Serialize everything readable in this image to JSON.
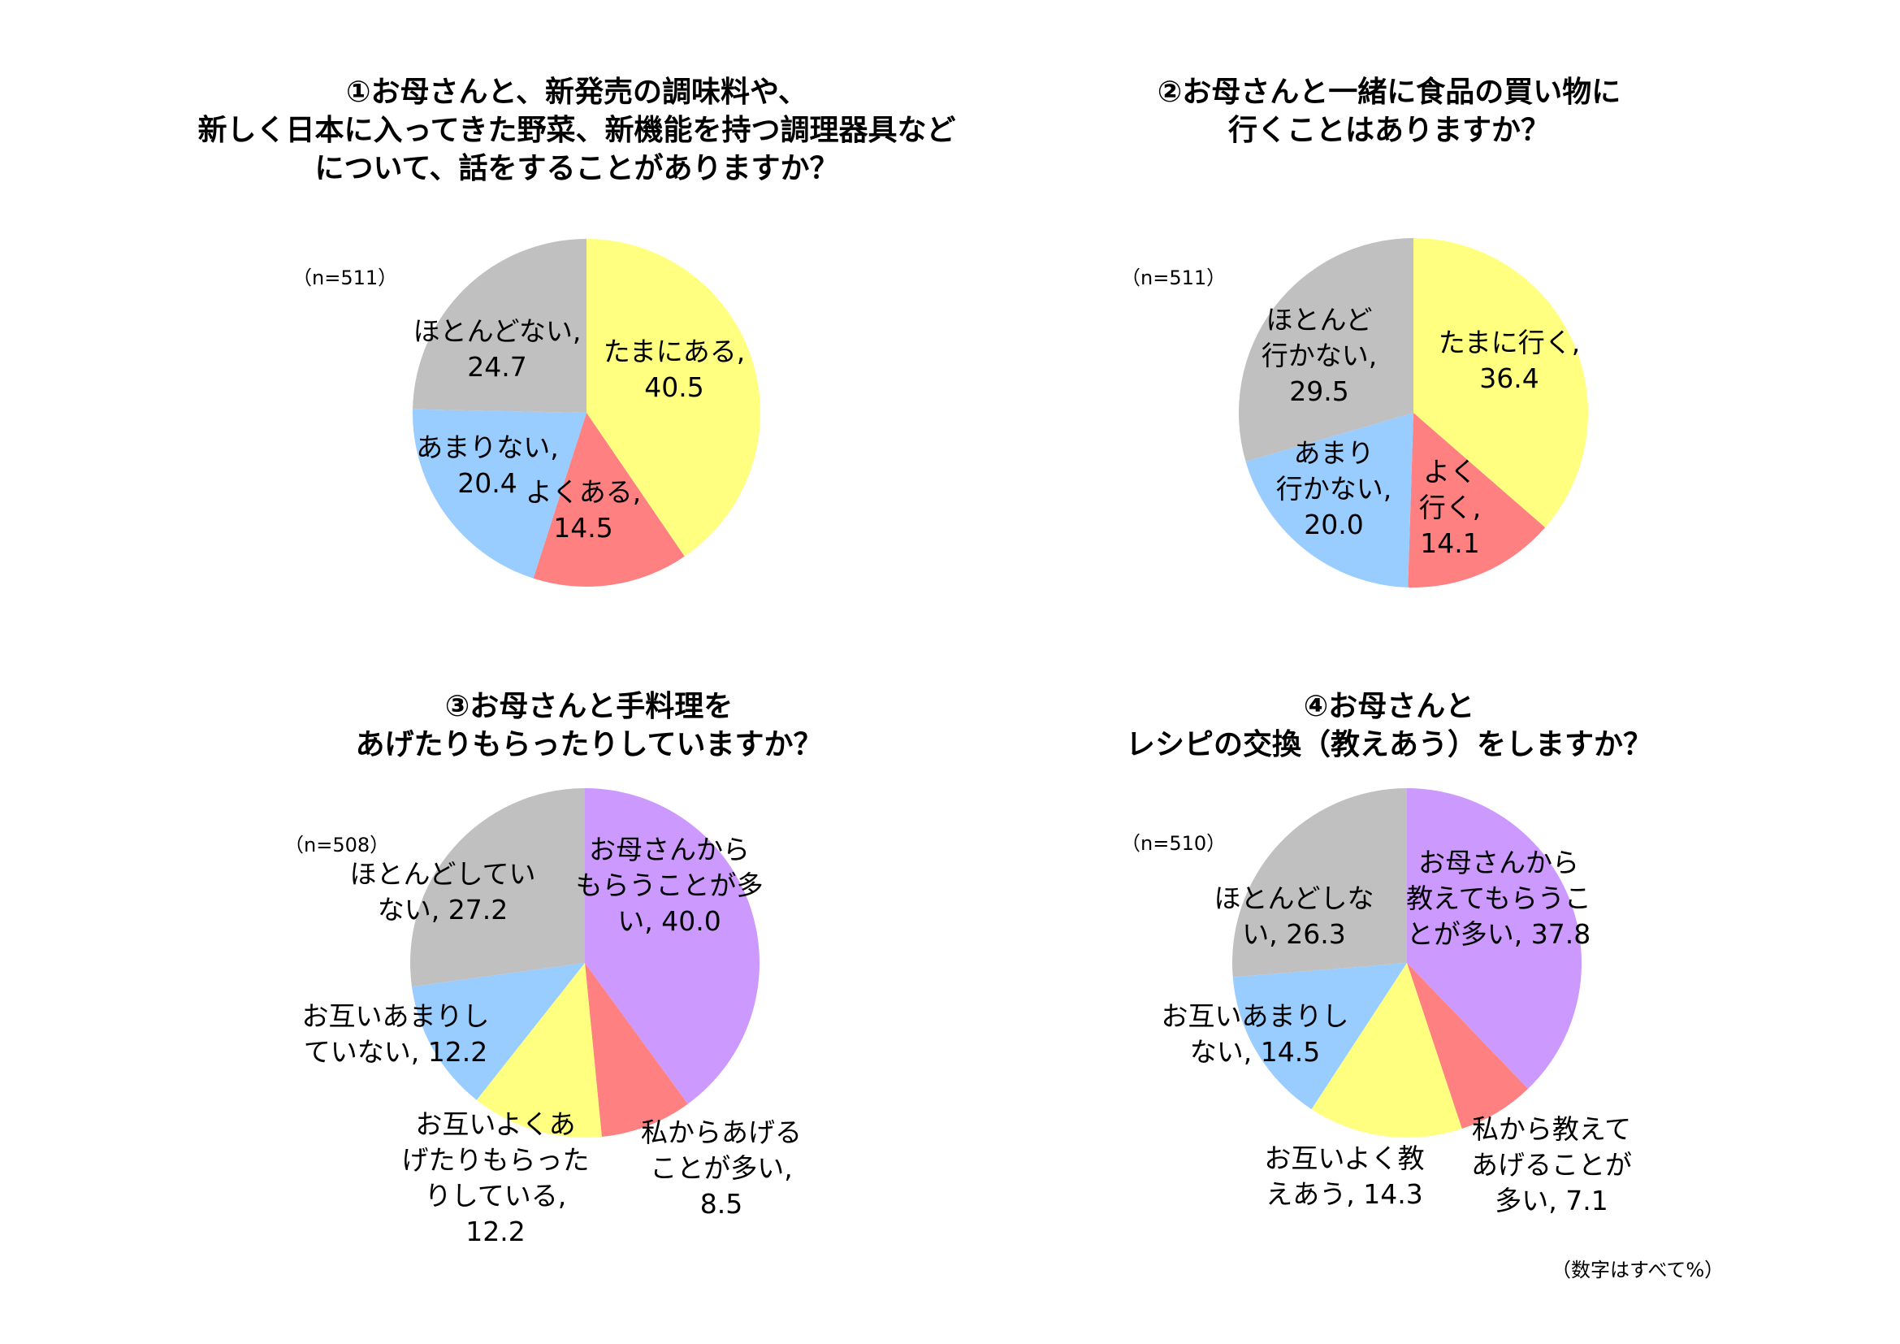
{
  "colors": {
    "yellow": "#ffff80",
    "red": "#ff8080",
    "blue": "#99ccff",
    "gray": "#c0c0c0",
    "purple": "#cc99ff"
  },
  "footnote": "（数字はすべて%）",
  "chart_data": [
    {
      "type": "pie",
      "title_lines": [
        "①お母さんと、新発売の調味料や、",
        "新しく日本に入ってきた野菜、新機能を持つ調理器具など",
        "について、話をすることがありますか？"
      ],
      "n_label": "（n=511）",
      "slices": [
        {
          "label_lines": [
            "たまにある,",
            "40.5"
          ],
          "value": 40.5,
          "color": "#ffff80"
        },
        {
          "label_lines": [
            "よくある,",
            "14.5"
          ],
          "value": 14.5,
          "color": "#ff8080"
        },
        {
          "label_lines": [
            "あまりない,",
            "20.4"
          ],
          "value": 20.4,
          "color": "#99ccff"
        },
        {
          "label_lines": [
            "ほとんどない,",
            "24.7"
          ],
          "value": 24.7,
          "color": "#c0c0c0"
        }
      ]
    },
    {
      "type": "pie",
      "title_lines": [
        "②お母さんと一緒に食品の買い物に",
        "行くことはありますか？"
      ],
      "n_label": "（n=511）",
      "slices": [
        {
          "label_lines": [
            "たまに行く,",
            "36.4"
          ],
          "value": 36.4,
          "color": "#ffff80"
        },
        {
          "label_lines": [
            "よく",
            "行く,",
            "14.1"
          ],
          "value": 14.1,
          "color": "#ff8080"
        },
        {
          "label_lines": [
            "あまり",
            "行かない,",
            "20.0"
          ],
          "value": 20.0,
          "color": "#99ccff"
        },
        {
          "label_lines": [
            "ほとんど",
            "行かない,",
            "29.5"
          ],
          "value": 29.5,
          "color": "#c0c0c0"
        }
      ]
    },
    {
      "type": "pie",
      "title_lines": [
        "③お母さんと手料理を",
        "あげたりもらったりしていますか？"
      ],
      "n_label": "（n=508）",
      "slices": [
        {
          "label_lines": [
            "お母さんから",
            "もらうことが多",
            "い, 40.0"
          ],
          "value": 40.0,
          "color": "#cc99ff"
        },
        {
          "label_lines": [
            "私からあげる",
            "ことが多い,",
            "8.5"
          ],
          "value": 8.5,
          "color": "#ff8080"
        },
        {
          "label_lines": [
            "お互いよくあ",
            "げたりもらった",
            "りしている,",
            "12.2"
          ],
          "value": 12.2,
          "color": "#ffff80"
        },
        {
          "label_lines": [
            "お互いあまりし",
            "ていない, 12.2"
          ],
          "value": 12.2,
          "color": "#99ccff"
        },
        {
          "label_lines": [
            "ほとんどしてい",
            "ない, 27.2"
          ],
          "value": 27.2,
          "color": "#c0c0c0"
        }
      ]
    },
    {
      "type": "pie",
      "title_lines": [
        "④お母さんと",
        "レシピの交換（教えあう）をしますか？"
      ],
      "n_label": "（n=510）",
      "slices": [
        {
          "label_lines": [
            "お母さんから",
            "教えてもらうこ",
            "とが多い, 37.8"
          ],
          "value": 37.8,
          "color": "#cc99ff"
        },
        {
          "label_lines": [
            "私から教えて",
            "あげることが",
            "多い, 7.1"
          ],
          "value": 7.1,
          "color": "#ff8080"
        },
        {
          "label_lines": [
            "お互いよく教",
            "えあう, 14.3"
          ],
          "value": 14.3,
          "color": "#ffff80"
        },
        {
          "label_lines": [
            "お互いあまりし",
            "ない, 14.5"
          ],
          "value": 14.5,
          "color": "#99ccff"
        },
        {
          "label_lines": [
            "ほとんどしな",
            "い, 26.3"
          ],
          "value": 26.3,
          "color": "#c0c0c0"
        }
      ]
    }
  ]
}
